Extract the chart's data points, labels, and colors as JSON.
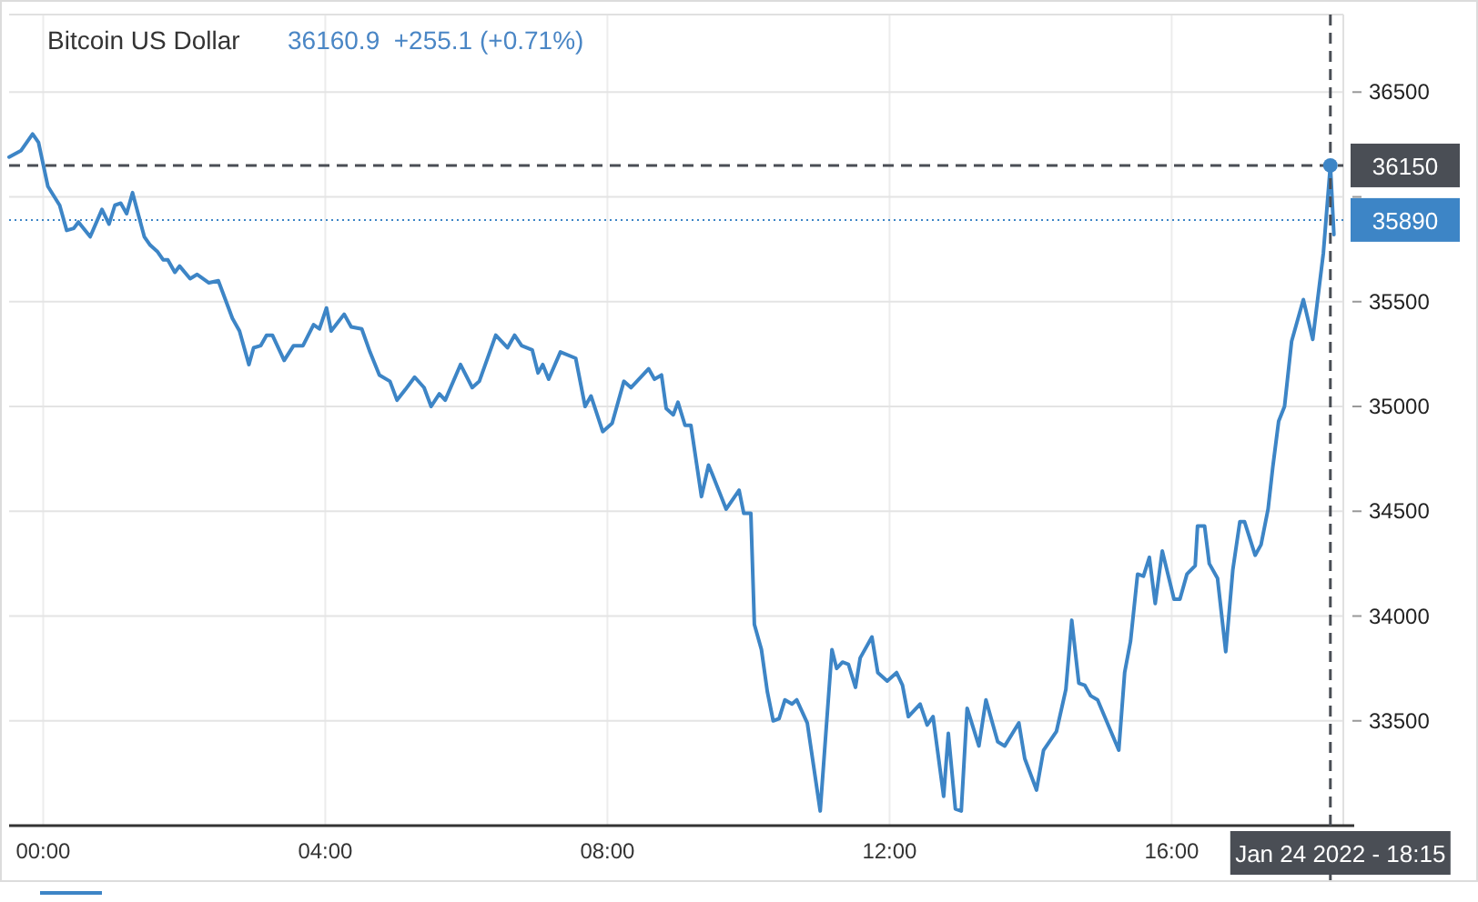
{
  "chart_data": {
    "type": "line",
    "title": "Bitcoin US Dollar",
    "subtitle": "36160.9  +255.1 (+0.71%)",
    "xlim": [
      "2022-01-23T23:31",
      "2022-01-24T18:26"
    ],
    "ylim": [
      33000,
      36870
    ],
    "xticks": [
      {
        "value": "2022-01-24T00:00",
        "label": "00:00"
      },
      {
        "value": "2022-01-24T04:00",
        "label": "04:00"
      },
      {
        "value": "2022-01-24T08:00",
        "label": "08:00"
      },
      {
        "value": "2022-01-24T12:00",
        "label": "12:00"
      },
      {
        "value": "2022-01-24T16:00",
        "label": "16:00"
      }
    ],
    "yticks": [
      33500,
      34000,
      34500,
      35000,
      35500,
      {
        "value": 36000,
        "label": null
      },
      36500
    ],
    "grid": true,
    "marker": "none",
    "line_style": "solid",
    "series": [
      {
        "color": "#3d85c6",
        "x": [
          "2022-01-23T23:31",
          "2022-01-23T23:41",
          "2022-01-23T23:51",
          "2022-01-23T23:56",
          "2022-01-24T00:04",
          "2022-01-24T00:14",
          "2022-01-24T00:20",
          "2022-01-24T00:26",
          "2022-01-24T00:30",
          "2022-01-24T00:40",
          "2022-01-24T00:50",
          "2022-01-24T00:56",
          "2022-01-24T01:01",
          "2022-01-24T01:06",
          "2022-01-24T01:11",
          "2022-01-24T01:16",
          "2022-01-24T01:26",
          "2022-01-24T01:31",
          "2022-01-24T01:37",
          "2022-01-24T01:42",
          "2022-01-24T01:46",
          "2022-01-24T01:52",
          "2022-01-24T01:56",
          "2022-01-24T02:05",
          "2022-01-24T02:11",
          "2022-01-24T02:21",
          "2022-01-24T02:29",
          "2022-01-24T02:41",
          "2022-01-24T02:47",
          "2022-01-24T02:55",
          "2022-01-24T02:59",
          "2022-01-24T03:05",
          "2022-01-24T03:10",
          "2022-01-24T03:15",
          "2022-01-24T03:25",
          "2022-01-24T03:33",
          "2022-01-24T03:41",
          "2022-01-24T03:50",
          "2022-01-24T03:55",
          "2022-01-24T04:01",
          "2022-01-24T04:05",
          "2022-01-24T04:16",
          "2022-01-24T04:22",
          "2022-01-24T04:31",
          "2022-01-24T04:38",
          "2022-01-24T04:46",
          "2022-01-24T04:55",
          "2022-01-24T05:01",
          "2022-01-24T05:08",
          "2022-01-24T05:16",
          "2022-01-24T05:24",
          "2022-01-24T05:30",
          "2022-01-24T05:37",
          "2022-01-24T05:42",
          "2022-01-24T05:55",
          "2022-01-24T06:05",
          "2022-01-24T06:11",
          "2022-01-24T06:25",
          "2022-01-24T06:35",
          "2022-01-24T06:41",
          "2022-01-24T06:47",
          "2022-01-24T06:56",
          "2022-01-24T07:01",
          "2022-01-24T07:05",
          "2022-01-24T07:10",
          "2022-01-24T07:20",
          "2022-01-24T07:33",
          "2022-01-24T07:41",
          "2022-01-24T07:46",
          "2022-01-24T07:56",
          "2022-01-24T08:04",
          "2022-01-24T08:14",
          "2022-01-24T08:20",
          "2022-01-24T08:35",
          "2022-01-24T08:40",
          "2022-01-24T08:46",
          "2022-01-24T08:50",
          "2022-01-24T08:56",
          "2022-01-24T09:00",
          "2022-01-24T09:06",
          "2022-01-24T09:11",
          "2022-01-24T09:20",
          "2022-01-24T09:26",
          "2022-01-24T09:29",
          "2022-01-24T09:41",
          "2022-01-24T09:52",
          "2022-01-24T09:56",
          "2022-01-24T10:02",
          "2022-01-24T10:05",
          "2022-01-24T10:11",
          "2022-01-24T10:16",
          "2022-01-24T10:21",
          "2022-01-24T10:26",
          "2022-01-24T10:31",
          "2022-01-24T10:37",
          "2022-01-24T10:41",
          "2022-01-24T10:50",
          "2022-01-24T11:01",
          "2022-01-24T11:11",
          "2022-01-24T11:15",
          "2022-01-24T11:20",
          "2022-01-24T11:25",
          "2022-01-24T11:31",
          "2022-01-24T11:35",
          "2022-01-24T11:45",
          "2022-01-24T11:50",
          "2022-01-24T11:58",
          "2022-01-24T12:06",
          "2022-01-24T12:11",
          "2022-01-24T12:16",
          "2022-01-24T12:26",
          "2022-01-24T12:32",
          "2022-01-24T12:37",
          "2022-01-24T12:46",
          "2022-01-24T12:50",
          "2022-01-24T12:56",
          "2022-01-24T13:01",
          "2022-01-24T13:06",
          "2022-01-24T13:16",
          "2022-01-24T13:22",
          "2022-01-24T13:32",
          "2022-01-24T13:38",
          "2022-01-24T13:50",
          "2022-01-24T13:55",
          "2022-01-24T14:05",
          "2022-01-24T14:11",
          "2022-01-24T14:22",
          "2022-01-24T14:30",
          "2022-01-24T14:35",
          "2022-01-24T14:41",
          "2022-01-24T14:46",
          "2022-01-24T14:51",
          "2022-01-24T14:57",
          "2022-01-24T15:15",
          "2022-01-24T15:20",
          "2022-01-24T15:25",
          "2022-01-24T15:31",
          "2022-01-24T15:36",
          "2022-01-24T15:41",
          "2022-01-24T15:46",
          "2022-01-24T15:52",
          "2022-01-24T16:02",
          "2022-01-24T16:07",
          "2022-01-24T16:13",
          "2022-01-24T16:20",
          "2022-01-24T16:22",
          "2022-01-24T16:28",
          "2022-01-24T16:32",
          "2022-01-24T16:39",
          "2022-01-24T16:46",
          "2022-01-24T16:52",
          "2022-01-24T16:58",
          "2022-01-24T17:02",
          "2022-01-24T17:11",
          "2022-01-24T17:16",
          "2022-01-24T17:22",
          "2022-01-24T17:26",
          "2022-01-24T17:31",
          "2022-01-24T17:36",
          "2022-01-24T17:42",
          "2022-01-24T17:52",
          "2022-01-24T18:00",
          "2022-01-24T18:09",
          "2022-01-24T18:15",
          "2022-01-24T18:18"
        ],
        "values": [
          36190,
          36220,
          36300,
          36260,
          36050,
          35960,
          35840,
          35850,
          35880,
          35810,
          35940,
          35870,
          35960,
          35970,
          35920,
          36020,
          35810,
          35770,
          35740,
          35700,
          35700,
          35640,
          35670,
          35610,
          35630,
          35590,
          35600,
          35420,
          35360,
          35200,
          35280,
          35290,
          35340,
          35340,
          35220,
          35290,
          35290,
          35390,
          35370,
          35470,
          35360,
          35440,
          35380,
          35370,
          35260,
          35150,
          35120,
          35030,
          35080,
          35140,
          35090,
          35000,
          35060,
          35030,
          35200,
          35090,
          35120,
          35340,
          35280,
          35340,
          35290,
          35270,
          35160,
          35200,
          35130,
          35260,
          35230,
          35000,
          35050,
          34880,
          34920,
          35120,
          35090,
          35180,
          35130,
          35150,
          34990,
          34960,
          35020,
          34910,
          34910,
          34570,
          34720,
          34680,
          34510,
          34600,
          34490,
          34490,
          33960,
          33840,
          33640,
          33500,
          33510,
          33600,
          33580,
          33600,
          33490,
          33070,
          33840,
          33750,
          33780,
          33770,
          33660,
          33800,
          33900,
          33730,
          33690,
          33730,
          33670,
          33520,
          33580,
          33480,
          33520,
          33140,
          33440,
          33080,
          33070,
          33560,
          33380,
          33600,
          33400,
          33380,
          33490,
          33320,
          33170,
          33360,
          33450,
          33650,
          33980,
          33680,
          33670,
          33620,
          33600,
          33360,
          33730,
          33880,
          34200,
          34190,
          34280,
          34060,
          34310,
          34080,
          34080,
          34200,
          34240,
          34430,
          34430,
          34250,
          34180,
          33830,
          34220,
          34450,
          34450,
          34290,
          34340,
          34510,
          34710,
          34930,
          35000,
          35310,
          35510,
          35320,
          35730,
          36150,
          35820
        ]
      }
    ],
    "ref_lines": [
      {
        "axis": "y",
        "value": 36150,
        "label": "36150",
        "color": "#4a4e55",
        "line_style": "dashed"
      },
      {
        "axis": "y",
        "value": 35890,
        "label": "35890",
        "color": "#3d85c6",
        "line_style": "dotted"
      },
      {
        "axis": "x",
        "value": "2022-01-24T18:15",
        "label": "Jan 24 2022 - 18:15",
        "color": "#4a4e55",
        "line_style": "dashed"
      }
    ]
  }
}
